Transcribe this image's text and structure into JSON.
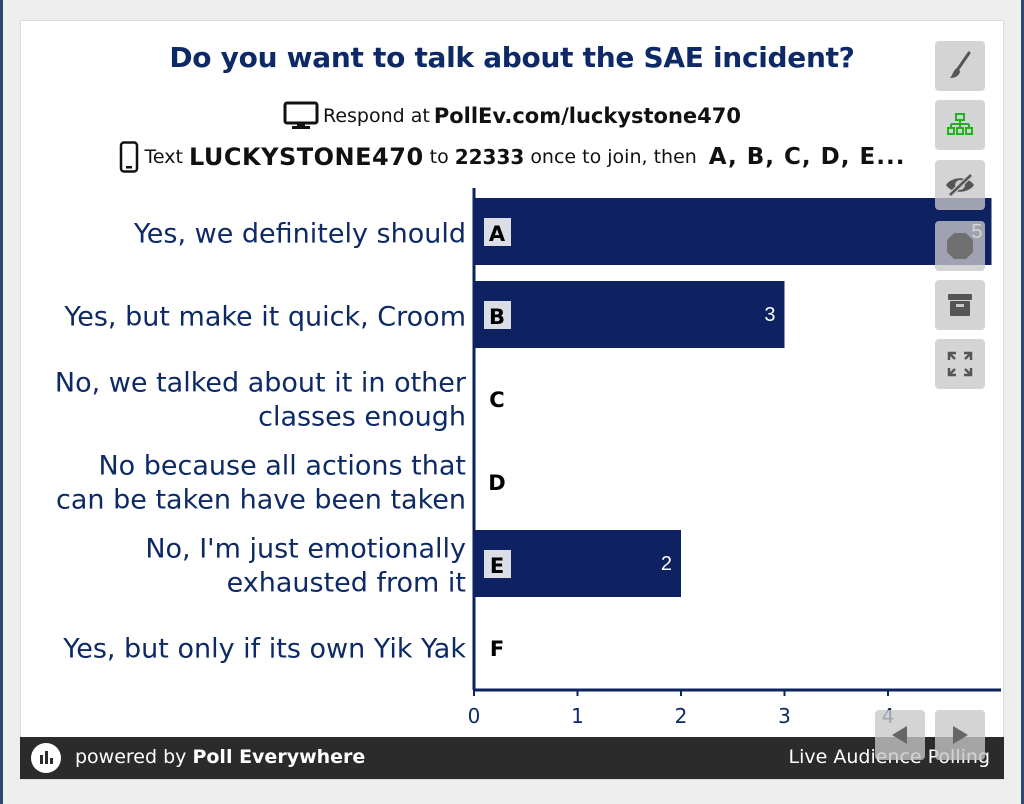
{
  "header": {
    "title": "Do you want to talk about the SAE incident?",
    "respond_prefix": "Respond at",
    "respond_url": "PollEv.com/luckystone470",
    "text_prefix": "Text",
    "text_code": "LUCKYSTONE470",
    "text_to": "to",
    "text_number": "22333",
    "text_suffix": "once to join, then",
    "text_letters": "A, B, C, D, E..."
  },
  "chart_data": {
    "type": "bar",
    "orientation": "horizontal",
    "categories": [
      "Yes, we definitely should",
      "Yes, but make it quick, Croom",
      "No, we talked about it in other classes enough",
      "No because all actions that can be taken have been taken",
      "No, I'm just emotionally exhausted from it",
      "Yes, but only if its own Yik Yak"
    ],
    "category_lines": [
      [
        "Yes, we definitely should"
      ],
      [
        "Yes, but make it quick, Croom"
      ],
      [
        "No, we talked about it in other",
        "classes enough"
      ],
      [
        "No because all actions that",
        "can be taken have been taken"
      ],
      [
        "No, I'm just emotionally",
        "exhausted from it"
      ],
      [
        "Yes, but only if its own Yik Yak"
      ]
    ],
    "letters": [
      "A",
      "B",
      "C",
      "D",
      "E",
      "F"
    ],
    "values": [
      5,
      3,
      0,
      0,
      2,
      0
    ],
    "data_labels": [
      "5",
      "3",
      "",
      "",
      "2",
      ""
    ],
    "xticks": [
      "0",
      "1",
      "2",
      "3",
      "4"
    ],
    "xlim": [
      0,
      5
    ],
    "bar_color": "#0e2160",
    "label_color": "#0e2a66",
    "grid": false
  },
  "toolbar": {
    "icons": [
      "paintbrush-icon",
      "network-icon",
      "eye-slash-icon",
      "stop-icon",
      "archive-icon",
      "expand-icon"
    ]
  },
  "nav": {
    "prev_icon": "triangle-left-icon",
    "next_icon": "triangle-right-icon"
  },
  "footer": {
    "powered_prefix": "powered by",
    "brand": "Poll Everywhere",
    "tagline": "Live Audience Polling"
  }
}
